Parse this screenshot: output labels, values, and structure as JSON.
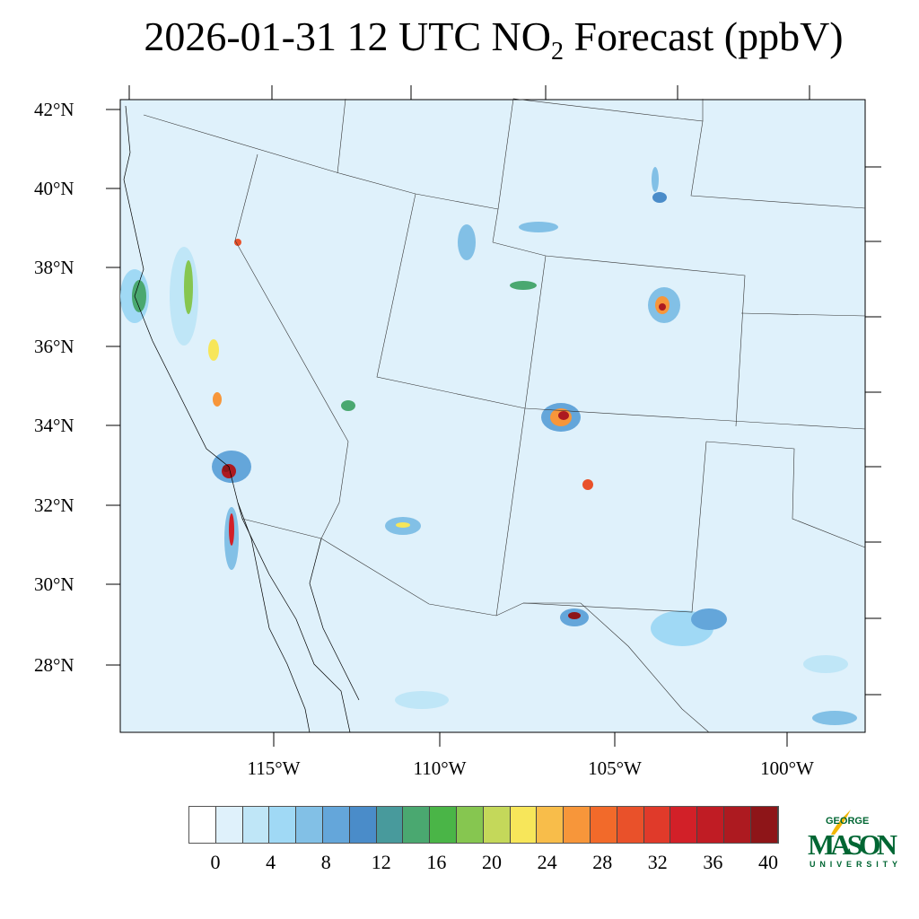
{
  "title": {
    "main": "2026-01-31 12 UTC NO",
    "sub": "2",
    "rest": " Forecast (ppbV)"
  },
  "map": {
    "lat_labels": [
      "42°N",
      "40°N",
      "38°N",
      "36°N",
      "34°N",
      "32°N",
      "30°N",
      "28°N"
    ],
    "lon_labels": [
      "115°W",
      "110°W",
      "105°W",
      "100°W"
    ],
    "background_color": "#dff1fb"
  },
  "colorbar": {
    "labels": [
      "0",
      "4",
      "8",
      "12",
      "16",
      "20",
      "24",
      "28",
      "32",
      "36",
      "40"
    ],
    "colors": [
      "#ffffff",
      "#dff1fb",
      "#bfe6f7",
      "#a0d9f5",
      "#82c0e6",
      "#64a6da",
      "#4a8cc9",
      "#489a9c",
      "#4aa870",
      "#4ab547",
      "#86c650",
      "#c4d85a",
      "#f7e65a",
      "#f8bd4a",
      "#f7963a",
      "#f26a2a",
      "#e9512a",
      "#e03a2a",
      "#d22028",
      "#c01c24",
      "#ad1a20",
      "#8e1518"
    ]
  },
  "logo": {
    "line1": "GEORGE",
    "line2": "MASON",
    "line3": "UNIVERSITY"
  }
}
